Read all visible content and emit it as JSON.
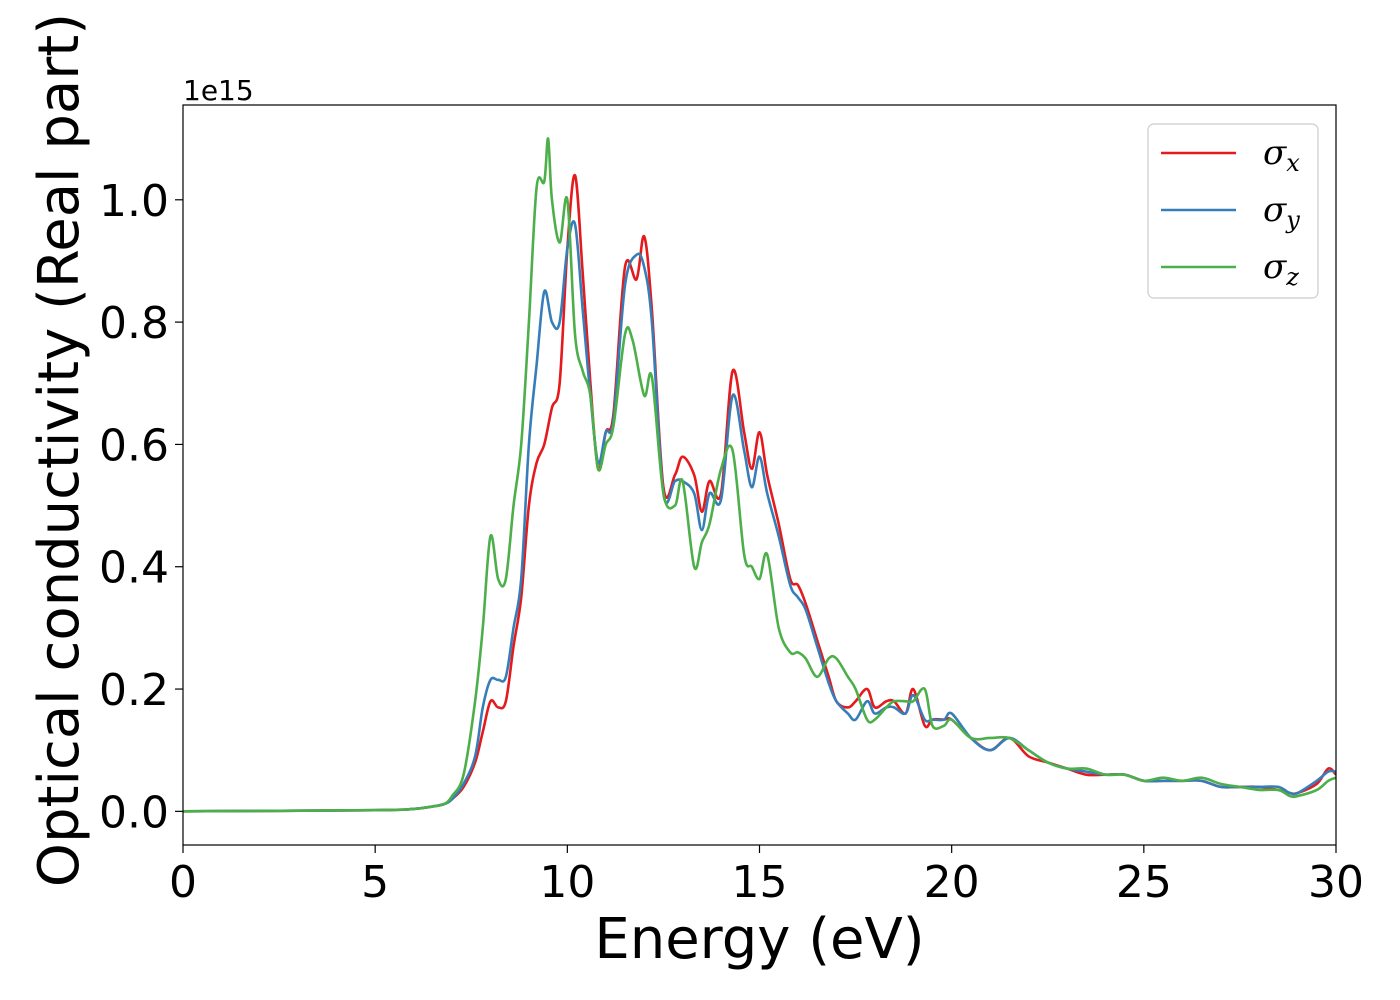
{
  "chart_data": {
    "type": "line",
    "xlabel": "Energy (eV)",
    "ylabel": "Optical conductivity (Real part)",
    "y_offset_text": "1e15",
    "xlim": [
      0,
      30
    ],
    "ylim": [
      -0.055,
      1.155
    ],
    "x_ticks": [
      0,
      5,
      10,
      15,
      20,
      25,
      30
    ],
    "x_tick_labels": [
      "0",
      "5",
      "10",
      "15",
      "20",
      "25",
      "30"
    ],
    "y_ticks": [
      0.0,
      0.2,
      0.4,
      0.6,
      0.8,
      1.0
    ],
    "y_tick_labels": [
      "0.0",
      "0.2",
      "0.4",
      "0.6",
      "0.8",
      "1.0"
    ],
    "grid": false,
    "legend_position": "top-right",
    "series": [
      {
        "name": "σx",
        "legend_symbol": "σ",
        "legend_sub": "x",
        "color": "#e41a1c",
        "x": [
          0,
          5,
          6,
          6.5,
          6.8,
          7.0,
          7.3,
          7.6,
          7.8,
          8.0,
          8.2,
          8.4,
          8.6,
          8.8,
          9.0,
          9.2,
          9.4,
          9.6,
          9.8,
          10.0,
          10.2,
          10.4,
          10.6,
          10.8,
          11.0,
          11.2,
          11.5,
          11.8,
          12.0,
          12.2,
          12.5,
          12.8,
          13.0,
          13.3,
          13.5,
          13.7,
          14.0,
          14.3,
          14.6,
          14.8,
          15.0,
          15.2,
          15.5,
          15.8,
          16.0,
          16.2,
          16.5,
          16.8,
          17.0,
          17.3,
          17.5,
          17.8,
          18.0,
          18.3,
          18.5,
          18.8,
          19.0,
          19.3,
          19.5,
          19.8,
          20.0,
          20.5,
          21.0,
          21.5,
          22.0,
          22.5,
          23.0,
          23.5,
          24.0,
          24.5,
          25.0,
          25.5,
          26.0,
          26.5,
          27.0,
          27.5,
          28.0,
          28.5,
          28.8,
          29.0,
          29.5,
          29.8,
          30.0
        ],
        "values": [
          0.0,
          0.002,
          0.004,
          0.008,
          0.012,
          0.02,
          0.04,
          0.08,
          0.13,
          0.18,
          0.17,
          0.18,
          0.27,
          0.35,
          0.5,
          0.57,
          0.6,
          0.66,
          0.7,
          0.92,
          1.04,
          0.88,
          0.7,
          0.56,
          0.62,
          0.65,
          0.89,
          0.87,
          0.94,
          0.82,
          0.53,
          0.55,
          0.58,
          0.55,
          0.49,
          0.54,
          0.52,
          0.72,
          0.62,
          0.56,
          0.62,
          0.55,
          0.47,
          0.38,
          0.37,
          0.34,
          0.28,
          0.22,
          0.18,
          0.17,
          0.18,
          0.2,
          0.17,
          0.18,
          0.18,
          0.16,
          0.2,
          0.14,
          0.15,
          0.15,
          0.15,
          0.12,
          0.1,
          0.12,
          0.09,
          0.08,
          0.07,
          0.06,
          0.06,
          0.06,
          0.05,
          0.05,
          0.05,
          0.05,
          0.04,
          0.04,
          0.04,
          0.035,
          0.03,
          0.03,
          0.045,
          0.07,
          0.06
        ]
      },
      {
        "name": "σy",
        "legend_symbol": "σ",
        "legend_sub": "y",
        "color": "#377eb8",
        "x": [
          0,
          5,
          6,
          6.5,
          6.8,
          7.0,
          7.3,
          7.6,
          7.8,
          8.0,
          8.2,
          8.4,
          8.6,
          8.8,
          9.0,
          9.2,
          9.4,
          9.6,
          9.8,
          10.0,
          10.2,
          10.4,
          10.6,
          10.8,
          11.0,
          11.2,
          11.5,
          11.8,
          12.0,
          12.2,
          12.5,
          12.8,
          13.0,
          13.3,
          13.5,
          13.7,
          14.0,
          14.3,
          14.6,
          14.8,
          15.0,
          15.2,
          15.5,
          15.8,
          16.0,
          16.2,
          16.5,
          16.8,
          17.0,
          17.3,
          17.5,
          17.8,
          18.0,
          18.3,
          18.5,
          18.8,
          19.0,
          19.3,
          19.5,
          19.8,
          20.0,
          20.5,
          21.0,
          21.5,
          22.0,
          22.5,
          23.0,
          23.5,
          24.0,
          24.5,
          25.0,
          25.5,
          26.0,
          26.5,
          27.0,
          27.5,
          28.0,
          28.5,
          28.8,
          29.0,
          29.5,
          29.8,
          30.0
        ],
        "values": [
          0.0,
          0.002,
          0.004,
          0.008,
          0.012,
          0.02,
          0.045,
          0.09,
          0.17,
          0.215,
          0.215,
          0.22,
          0.3,
          0.38,
          0.6,
          0.73,
          0.85,
          0.8,
          0.8,
          0.92,
          0.96,
          0.82,
          0.68,
          0.57,
          0.62,
          0.64,
          0.86,
          0.91,
          0.89,
          0.8,
          0.52,
          0.54,
          0.54,
          0.52,
          0.46,
          0.52,
          0.51,
          0.68,
          0.59,
          0.53,
          0.58,
          0.52,
          0.45,
          0.37,
          0.35,
          0.33,
          0.27,
          0.21,
          0.18,
          0.16,
          0.15,
          0.18,
          0.16,
          0.17,
          0.17,
          0.16,
          0.19,
          0.15,
          0.15,
          0.15,
          0.16,
          0.12,
          0.1,
          0.12,
          0.1,
          0.08,
          0.07,
          0.065,
          0.06,
          0.06,
          0.05,
          0.05,
          0.05,
          0.05,
          0.04,
          0.04,
          0.04,
          0.04,
          0.03,
          0.03,
          0.05,
          0.065,
          0.065
        ]
      },
      {
        "name": "σz",
        "legend_symbol": "σ",
        "legend_sub": "z",
        "color": "#4daf4a",
        "x": [
          0,
          5,
          6,
          6.5,
          6.8,
          7.0,
          7.3,
          7.6,
          7.8,
          8.0,
          8.2,
          8.4,
          8.6,
          8.8,
          9.0,
          9.2,
          9.4,
          9.5,
          9.6,
          9.8,
          10.0,
          10.2,
          10.4,
          10.6,
          10.8,
          11.0,
          11.2,
          11.5,
          11.7,
          12.0,
          12.2,
          12.5,
          12.8,
          13.0,
          13.3,
          13.5,
          13.7,
          14.0,
          14.3,
          14.6,
          14.8,
          15.0,
          15.2,
          15.5,
          15.8,
          16.0,
          16.2,
          16.5,
          16.8,
          17.0,
          17.3,
          17.5,
          17.8,
          18.0,
          18.3,
          18.5,
          18.8,
          19.0,
          19.3,
          19.5,
          19.8,
          20.0,
          20.5,
          21.0,
          21.5,
          22.0,
          22.5,
          23.0,
          23.5,
          24.0,
          24.5,
          25.0,
          25.5,
          26.0,
          26.5,
          27.0,
          27.5,
          28.0,
          28.5,
          28.8,
          29.0,
          29.5,
          29.8,
          30.0
        ],
        "values": [
          0.0,
          0.002,
          0.004,
          0.008,
          0.012,
          0.025,
          0.06,
          0.18,
          0.3,
          0.45,
          0.38,
          0.38,
          0.5,
          0.6,
          0.8,
          1.02,
          1.03,
          1.1,
          1.0,
          0.93,
          1.0,
          0.78,
          0.72,
          0.68,
          0.56,
          0.6,
          0.63,
          0.78,
          0.77,
          0.68,
          0.71,
          0.52,
          0.5,
          0.54,
          0.4,
          0.44,
          0.47,
          0.56,
          0.59,
          0.42,
          0.4,
          0.38,
          0.42,
          0.3,
          0.26,
          0.26,
          0.25,
          0.22,
          0.25,
          0.25,
          0.22,
          0.2,
          0.15,
          0.15,
          0.17,
          0.18,
          0.18,
          0.18,
          0.2,
          0.14,
          0.14,
          0.15,
          0.12,
          0.12,
          0.12,
          0.1,
          0.08,
          0.07,
          0.07,
          0.06,
          0.06,
          0.05,
          0.055,
          0.05,
          0.055,
          0.045,
          0.04,
          0.035,
          0.035,
          0.025,
          0.025,
          0.035,
          0.05,
          0.055
        ]
      }
    ]
  }
}
